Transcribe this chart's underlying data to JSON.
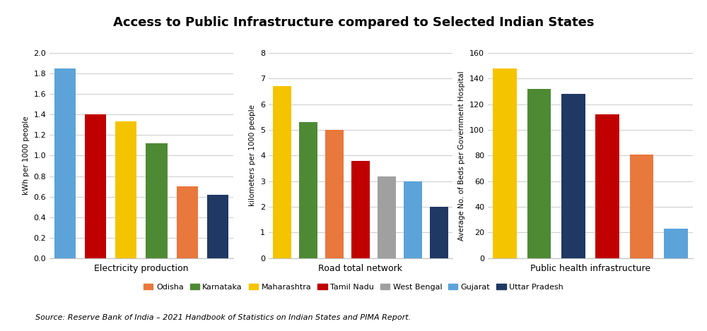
{
  "title": "Access to Public Infrastructure compared to Selected Indian States",
  "source_text": "Source: Reserve Bank of India – 2021 Handbook of Statistics on Indian States and PIMA Report.",
  "states": [
    "Odisha",
    "Karnataka",
    "Maharashtra",
    "Tamil Nadu",
    "West Bengal",
    "Gujarat",
    "Uttar Pradesh"
  ],
  "colors": {
    "Odisha": "#E8783C",
    "Karnataka": "#4E8A34",
    "Maharashtra": "#F5C400",
    "Tamil Nadu": "#C00000",
    "West Bengal": "#A0A0A0",
    "Gujarat": "#5BA3D9",
    "Uttar Pradesh": "#1F3864"
  },
  "subplots": [
    {
      "xlabel": "Electricity production",
      "ylabel": "kWh per 1000 people",
      "ylim": [
        0,
        2.0
      ],
      "yticks": [
        0.0,
        0.2,
        0.4,
        0.6,
        0.8,
        1.0,
        1.2,
        1.4,
        1.6,
        1.8,
        2.0
      ],
      "bars": [
        {
          "state": "Gujarat",
          "value": 1.85
        },
        {
          "state": "Tamil Nadu",
          "value": 1.4
        },
        {
          "state": "Maharashtra",
          "value": 1.33
        },
        {
          "state": "Karnataka",
          "value": 1.12
        },
        {
          "state": "Odisha",
          "value": 0.7
        },
        {
          "state": "Uttar Pradesh",
          "value": 0.62
        }
      ]
    },
    {
      "xlabel": "Road total network",
      "ylabel": "kilometers per 1000 people",
      "ylim": [
        0,
        8
      ],
      "yticks": [
        0,
        1,
        2,
        3,
        4,
        5,
        6,
        7,
        8
      ],
      "bars": [
        {
          "state": "Maharashtra",
          "value": 6.7
        },
        {
          "state": "Karnataka",
          "value": 5.3
        },
        {
          "state": "Odisha",
          "value": 5.0
        },
        {
          "state": "Tamil Nadu",
          "value": 3.8
        },
        {
          "state": "West Bengal",
          "value": 3.2
        },
        {
          "state": "Gujarat",
          "value": 3.0
        },
        {
          "state": "Uttar Pradesh",
          "value": 2.0
        }
      ]
    },
    {
      "xlabel": "Public health infrastructure",
      "ylabel": "Average No. of Beds per Government Hospital",
      "ylim": [
        0,
        160
      ],
      "yticks": [
        0,
        20,
        40,
        60,
        80,
        100,
        120,
        140,
        160
      ],
      "bars": [
        {
          "state": "Maharashtra",
          "value": 148
        },
        {
          "state": "Karnataka",
          "value": 132
        },
        {
          "state": "Uttar Pradesh",
          "value": 128
        },
        {
          "state": "Tamil Nadu",
          "value": 112
        },
        {
          "state": "Odisha",
          "value": 81
        },
        {
          "state": "Gujarat",
          "value": 23
        }
      ]
    }
  ],
  "legend_order": [
    "Odisha",
    "Karnataka",
    "Maharashtra",
    "Tamil Nadu",
    "West Bengal",
    "Gujarat",
    "Uttar Pradesh"
  ],
  "background_color": "#FFFFFF",
  "grid_color": "#D0D0D0"
}
